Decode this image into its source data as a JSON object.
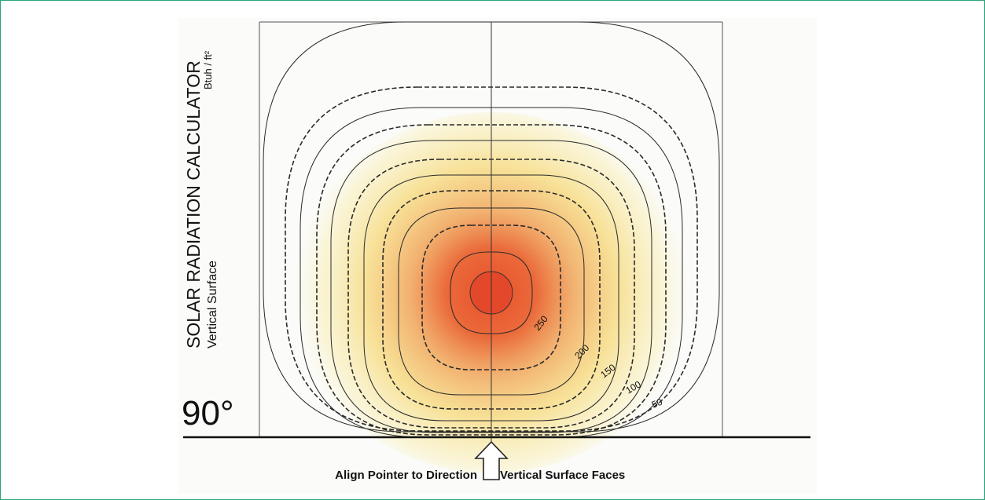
{
  "title": "SOLAR RADIATION CALCULATOR",
  "units": "Btuh / ft²",
  "subtitle": "Vertical Surface",
  "angle": "90°",
  "pointer_text_left": "Align Pointer to Direction",
  "pointer_text_right": "Vertical Surface Faces",
  "contour_labels": [
    "250",
    "200",
    "150",
    "100",
    "50"
  ],
  "colors": {
    "frame": "#2aa57a",
    "core": "#e8502c",
    "inner": "#ea7a4a",
    "middle": "#f3b45a",
    "outer": "#f6de74",
    "line": "#2a2a2a"
  }
}
